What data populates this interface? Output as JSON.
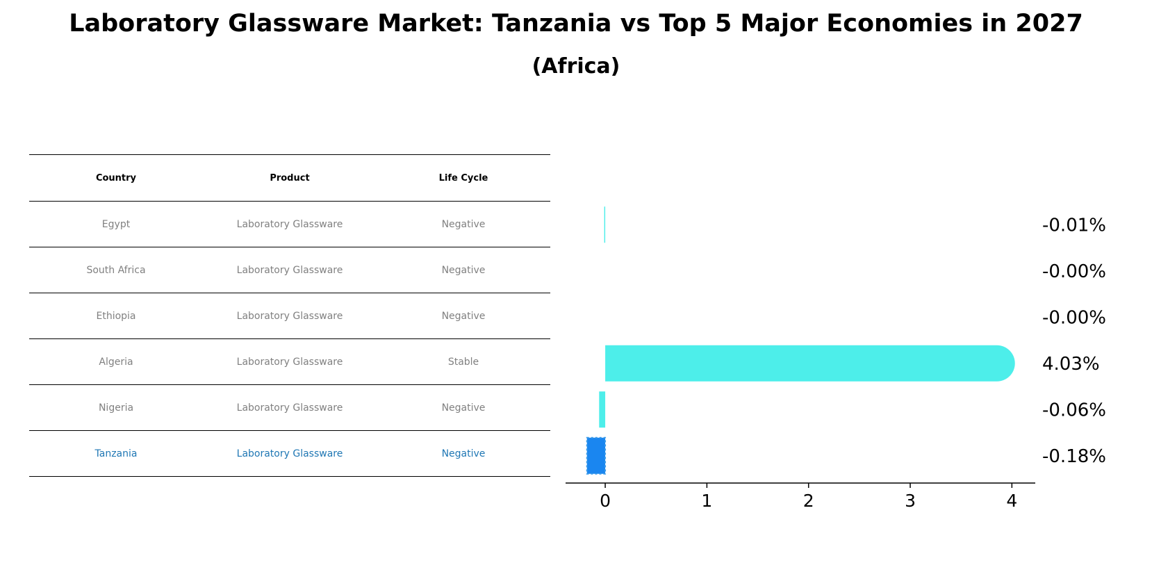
{
  "title": "Laboratory Glassware Market: Tanzania vs Top 5 Major Economies in 2027",
  "subtitle": "(Africa)",
  "table": {
    "headers": [
      "Country",
      "Product",
      "Life Cycle"
    ],
    "rows": [
      [
        "Egypt",
        "Laboratory Glassware",
        "Negative"
      ],
      [
        "South Africa",
        "Laboratory Glassware",
        "Negative"
      ],
      [
        "Ethiopia",
        "Laboratory Glassware",
        "Negative"
      ],
      [
        "Algeria",
        "Laboratory Glassware",
        "Stable"
      ],
      [
        "Nigeria",
        "Laboratory Glassware",
        "Negative"
      ],
      [
        "Tanzania",
        "Laboratory Glassware",
        "Negative"
      ]
    ],
    "highlight_row": "Tanzania"
  },
  "colors": {
    "bar": "#4deeea",
    "highlight_bar": "#1a86f0",
    "highlight_text": "#1f77b4",
    "muted_text": "#808080"
  },
  "chart_data": {
    "type": "bar",
    "orientation": "horizontal",
    "categories": [
      "Egypt",
      "South Africa",
      "Ethiopia",
      "Algeria",
      "Nigeria",
      "Tanzania"
    ],
    "values": [
      -0.01,
      -0.0,
      -0.0,
      4.03,
      -0.06,
      -0.18
    ],
    "value_labels": [
      "-0.01%",
      "-0.00%",
      "-0.00%",
      "4.03%",
      "-0.06%",
      "-0.18%"
    ],
    "xticks": [
      "0",
      "1",
      "2",
      "3",
      "4"
    ],
    "xlim": [
      -0.39,
      4.23
    ],
    "highlight": "Tanzania"
  }
}
